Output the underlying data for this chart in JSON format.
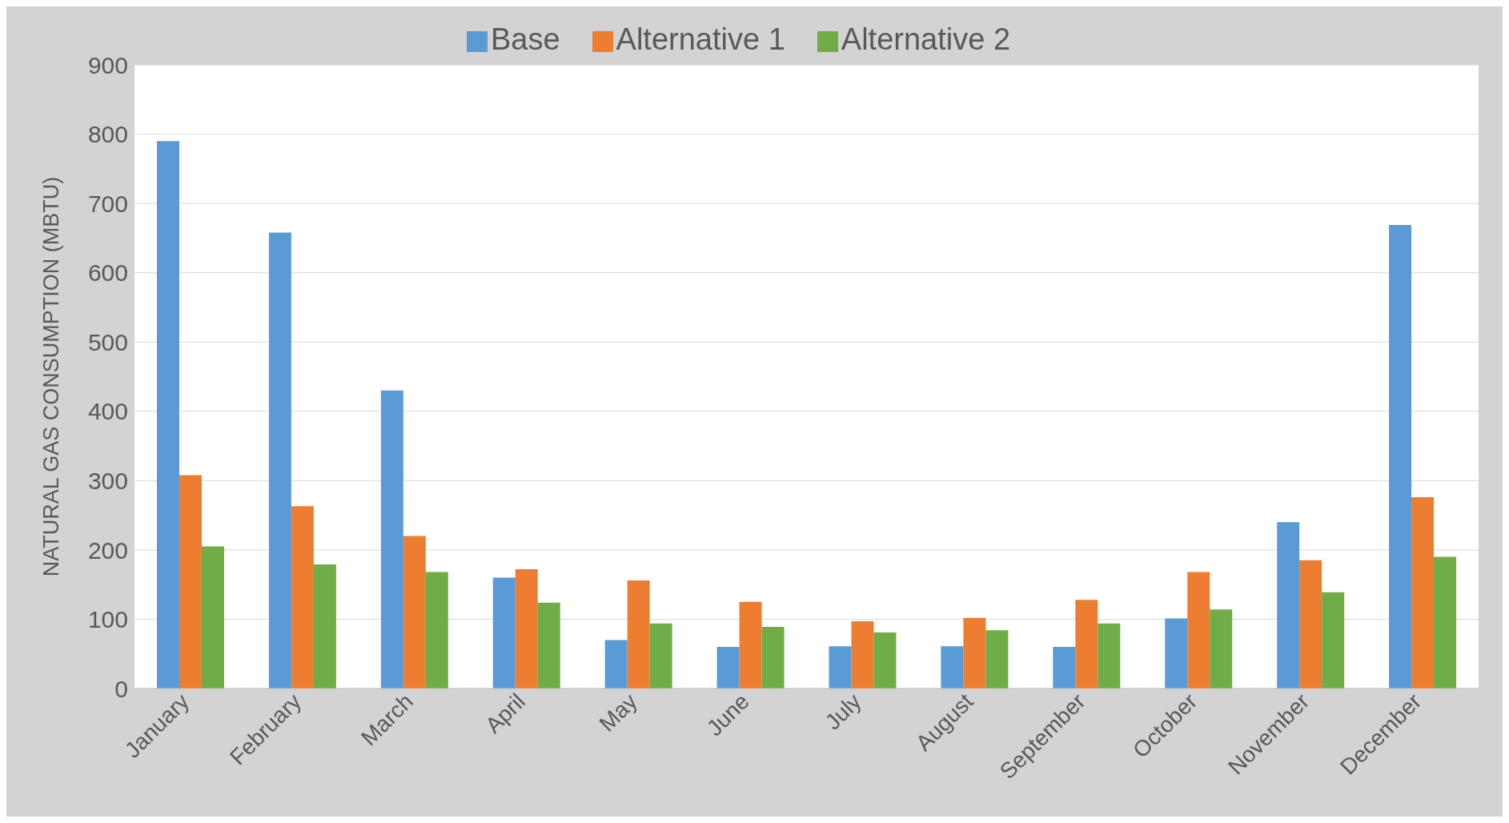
{
  "chart_data": {
    "type": "bar",
    "ylabel": "NATURAL GAS CONSUMPTION (MBTU)",
    "categories": [
      "January",
      "February",
      "March",
      "April",
      "May",
      "June",
      "July",
      "August",
      "September",
      "October",
      "November",
      "December"
    ],
    "series": [
      {
        "name": "Base",
        "color": "#5b9bd5",
        "values": [
          790,
          658,
          430,
          160,
          70,
          60,
          61,
          61,
          60,
          101,
          240,
          669
        ]
      },
      {
        "name": "Alternative 1",
        "color": "#ed7d31",
        "values": [
          308,
          263,
          220,
          172,
          156,
          125,
          97,
          102,
          128,
          168,
          185,
          276
        ]
      },
      {
        "name": "Alternative 2",
        "color": "#70ad47",
        "values": [
          205,
          179,
          168,
          124,
          94,
          89,
          81,
          84,
          94,
          114,
          139,
          190
        ]
      }
    ],
    "ylim": [
      0,
      900
    ],
    "yticks": [
      0,
      100,
      200,
      300,
      400,
      500,
      600,
      700,
      800,
      900
    ],
    "grid": "y",
    "legend": "top"
  }
}
